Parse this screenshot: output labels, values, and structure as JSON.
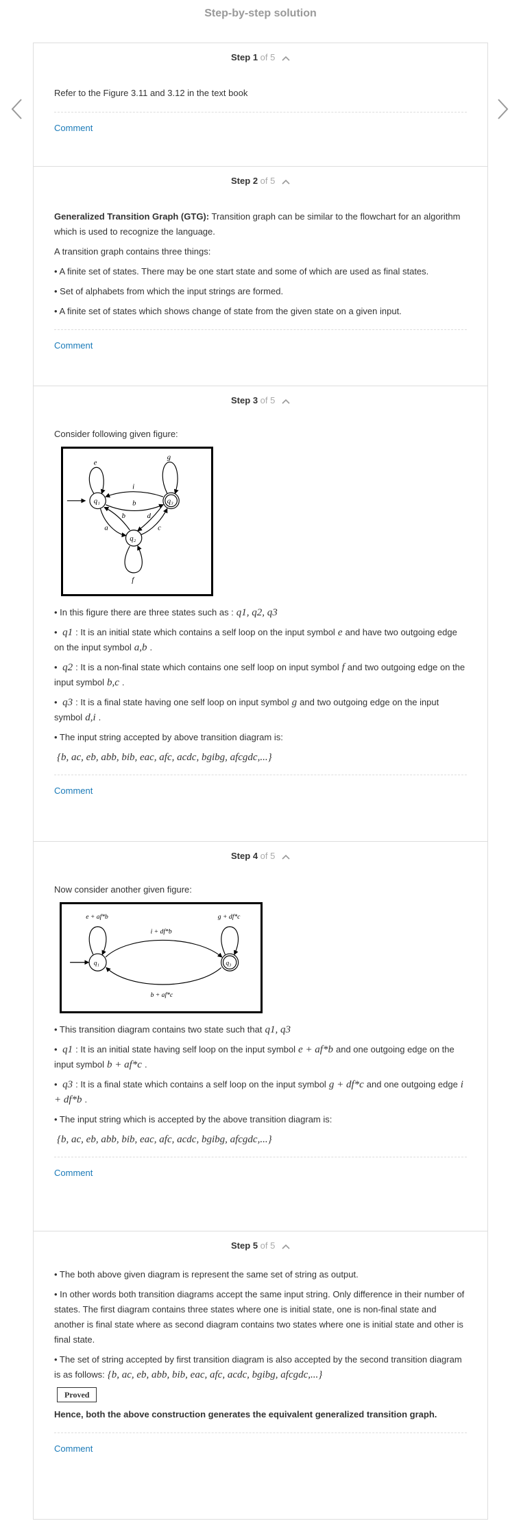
{
  "header": {
    "title": "Step-by-step solution"
  },
  "step_prefix": "Step",
  "step_of": "of 5",
  "comment_label": "Comment",
  "steps": {
    "s1": {
      "number": "1",
      "text": "Refer to the Figure 3.11 and 3.12 in the text book"
    },
    "s2": {
      "number": "2",
      "term": "Generalized Transition Graph (GTG):",
      "definition": " Transition graph can be similar to the flowchart for an algorithm which is used to recognize the language.",
      "intro": "A transition graph contains three things:",
      "bullets": [
        "• A finite set of states. There may be one start state and some of which are used as final states.",
        "• Set of alphabets from which the input strings are formed.",
        "• A finite set of states which shows change of state from the given state on a given input."
      ]
    },
    "s3": {
      "number": "3",
      "intro": "Consider following given figure:",
      "figure_labels": {
        "q1": "q₁",
        "q2": "q₂",
        "q3": "q₃",
        "e": "e",
        "g": "g",
        "i": "i",
        "b_top": "b",
        "b_mid": "b",
        "d": "d",
        "a": "a",
        "c": "c",
        "f": "f"
      },
      "b1_pre": "• In this figure there are three states such as :",
      "b1_math": "q1, q2, q3",
      "b2_pre": "• ",
      "b2_state": "q1",
      "b2_text1": ": It is an initial state which contains a self loop on the input symbol",
      "b2_sym1": "e",
      "b2_text2": "and have two outgoing edge on the input symbol",
      "b2_sym2": "a,b",
      "b2_end": ".",
      "b3_pre": "• ",
      "b3_state": "q2",
      "b3_text1": ": It is a non-final state which contains one self loop on input symbol",
      "b3_sym1": "f",
      "b3_text2": "and two outgoing edge on the input symbol",
      "b3_sym2": "b,c",
      "b3_end": ".",
      "b4_pre": "• ",
      "b4_state": "q3",
      "b4_text1": ": It is a final state having one self loop on input symbol",
      "b4_sym1": "g",
      "b4_text2": "and two outgoing edge on the input symbol",
      "b4_sym2": "d,i",
      "b4_end": ".",
      "b5": "• The input string accepted by above transition diagram is:",
      "set": "{b, ac, eb, abb, bib, eac, afc, acdc, bgibg, afcgdc,...}"
    },
    "s4": {
      "number": "4",
      "intro": "Now consider another given figure:",
      "figure_labels": {
        "q1": "q₁",
        "q3": "q₃",
        "loop1": "e + af*b",
        "loop3": "g + df*c",
        "top": "i + df*b",
        "bottom": "b + af*c"
      },
      "b1_pre": "• This transition diagram contains two state such that",
      "b1_math": "q1, q3",
      "b2_pre": "• ",
      "b2_state": "q1",
      "b2_text1": ": It is an initial state having self loop on the input symbol",
      "b2_sym1": "e + af*b",
      "b2_text2": "and one outgoing edge on the input symbol",
      "b2_sym2": "b + af*c",
      "b2_end": ".",
      "b3_pre": "• ",
      "b3_state": "q3",
      "b3_text1": ": It is a final state which contains a self loop on the input symbol",
      "b3_sym1": "g + df*c",
      "b3_text2": "and one outgoing edge",
      "b3_sym2": "i + df*b",
      "b3_end": ".",
      "b4": "• The input string which is accepted by the above transition diagram is:",
      "set": "{b, ac, eb, abb, bib, eac, afc, acdc, bgibg, afcgdc,...}"
    },
    "s5": {
      "number": "5",
      "b1": "• The both above given diagram is represent the same set of string as output.",
      "b2": "• In other words both transition diagrams accept the same input string. Only difference in their number of states. The first diagram contains three states where one is initial state, one is non-final state and another is final state where as second diagram contains two states where one is initial state and other is final state.",
      "b3_pre": "• The set of string accepted by first transition diagram is also accepted by the second transition diagram is as follows:",
      "set": "{b, ac, eb, abb, bib, eac, afc, acdc, bgibg, afcgdc,...}",
      "proved": "Proved",
      "conclusion": "Hence, both the above construction generates the equivalent generalized transition graph."
    }
  }
}
